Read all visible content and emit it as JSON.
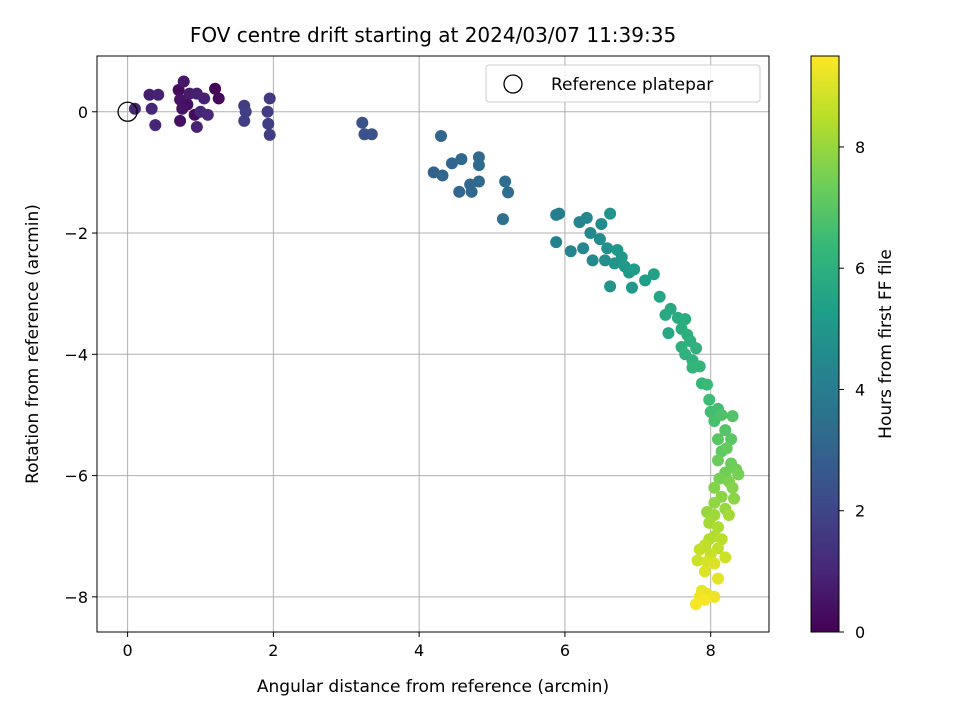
{
  "chart_data": {
    "type": "scatter",
    "title": "FOV centre drift starting at 2024/03/07 11:39:35",
    "xlabel": "Angular distance from reference (arcmin)",
    "ylabel": "Rotation from reference (arcmin)",
    "xlim": [
      -0.42,
      8.8
    ],
    "ylim": [
      -8.58,
      0.92
    ],
    "xticks": [
      0,
      2,
      4,
      6,
      8
    ],
    "yticks": [
      0,
      -2,
      -4,
      -6,
      -8
    ],
    "grid": true,
    "legend": {
      "placement": "top-right",
      "entries": [
        "Reference platepar"
      ]
    },
    "reference_point": {
      "x": 0,
      "y": 0,
      "label": "Reference platepar"
    },
    "colorbar": {
      "label": "Hours from first FF file",
      "min": 0,
      "max": 9.5,
      "ticks": [
        0,
        2,
        4,
        6,
        8
      ],
      "colormap": "viridis",
      "colors": [
        "#440154",
        "#482878",
        "#3e4989",
        "#31688e",
        "#26828e",
        "#1f9e89",
        "#35b779",
        "#6ece58",
        "#b5de2b",
        "#fde725"
      ]
    },
    "points": [
      {
        "x": 0.3,
        "y": 0.28,
        "t": 0.8
      },
      {
        "x": 0.42,
        "y": 0.28,
        "t": 0.9
      },
      {
        "x": 0.33,
        "y": 0.05,
        "t": 1.0
      },
      {
        "x": 0.38,
        "y": -0.22,
        "t": 1.0
      },
      {
        "x": 0.1,
        "y": 0.05,
        "t": 1.0
      },
      {
        "x": 0.7,
        "y": 0.36,
        "t": 0.3
      },
      {
        "x": 0.77,
        "y": 0.5,
        "t": 0.6
      },
      {
        "x": 0.72,
        "y": 0.2,
        "t": 0.5
      },
      {
        "x": 0.82,
        "y": 0.12,
        "t": 0.4
      },
      {
        "x": 0.72,
        "y": -0.15,
        "t": 0.4
      },
      {
        "x": 0.85,
        "y": 0.3,
        "t": 0.7
      },
      {
        "x": 0.95,
        "y": 0.3,
        "t": 0.8
      },
      {
        "x": 0.92,
        "y": -0.05,
        "t": 0.3
      },
      {
        "x": 0.95,
        "y": -0.25,
        "t": 0.9
      },
      {
        "x": 1.05,
        "y": 0.22,
        "t": 0.9
      },
      {
        "x": 1.0,
        "y": 0.0,
        "t": 1.0
      },
      {
        "x": 1.1,
        "y": -0.05,
        "t": 1.1
      },
      {
        "x": 1.2,
        "y": 0.38,
        "t": 0.1
      },
      {
        "x": 1.25,
        "y": 0.22,
        "t": 0.2
      },
      {
        "x": 0.75,
        "y": 0.05,
        "t": 0.5
      },
      {
        "x": 1.6,
        "y": 0.1,
        "t": 1.7
      },
      {
        "x": 1.62,
        "y": 0.0,
        "t": 1.8
      },
      {
        "x": 1.6,
        "y": -0.15,
        "t": 1.8
      },
      {
        "x": 1.95,
        "y": 0.22,
        "t": 1.6
      },
      {
        "x": 1.92,
        "y": 0.0,
        "t": 1.7
      },
      {
        "x": 1.93,
        "y": -0.2,
        "t": 1.8
      },
      {
        "x": 1.95,
        "y": -0.38,
        "t": 1.8
      },
      {
        "x": 3.22,
        "y": -0.18,
        "t": 2.4
      },
      {
        "x": 3.25,
        "y": -0.37,
        "t": 2.4
      },
      {
        "x": 3.35,
        "y": -0.37,
        "t": 2.4
      },
      {
        "x": 4.3,
        "y": -0.4,
        "t": 3.1
      },
      {
        "x": 4.2,
        "y": -1.0,
        "t": 3.0
      },
      {
        "x": 4.32,
        "y": -1.05,
        "t": 3.1
      },
      {
        "x": 4.45,
        "y": -0.85,
        "t": 3.1
      },
      {
        "x": 4.58,
        "y": -0.78,
        "t": 3.2
      },
      {
        "x": 4.55,
        "y": -1.32,
        "t": 3.1
      },
      {
        "x": 4.7,
        "y": -1.2,
        "t": 3.2
      },
      {
        "x": 4.72,
        "y": -1.32,
        "t": 3.2
      },
      {
        "x": 4.82,
        "y": -0.75,
        "t": 3.3
      },
      {
        "x": 4.82,
        "y": -0.88,
        "t": 3.3
      },
      {
        "x": 4.82,
        "y": -1.15,
        "t": 3.3
      },
      {
        "x": 5.18,
        "y": -1.15,
        "t": 3.4
      },
      {
        "x": 5.22,
        "y": -1.33,
        "t": 3.4
      },
      {
        "x": 5.15,
        "y": -1.77,
        "t": 3.5
      },
      {
        "x": 5.88,
        "y": -1.7,
        "t": 4.1
      },
      {
        "x": 5.92,
        "y": -1.68,
        "t": 4.1
      },
      {
        "x": 5.88,
        "y": -2.15,
        "t": 4.2
      },
      {
        "x": 6.08,
        "y": -2.3,
        "t": 4.3
      },
      {
        "x": 6.2,
        "y": -1.82,
        "t": 4.3
      },
      {
        "x": 6.3,
        "y": -1.75,
        "t": 4.4
      },
      {
        "x": 6.35,
        "y": -2.0,
        "t": 4.5
      },
      {
        "x": 6.25,
        "y": -2.25,
        "t": 4.4
      },
      {
        "x": 6.38,
        "y": -2.45,
        "t": 4.5
      },
      {
        "x": 6.48,
        "y": -2.1,
        "t": 4.6
      },
      {
        "x": 6.5,
        "y": -1.85,
        "t": 4.6
      },
      {
        "x": 6.55,
        "y": -2.45,
        "t": 4.7
      },
      {
        "x": 6.58,
        "y": -2.25,
        "t": 4.8
      },
      {
        "x": 6.62,
        "y": -1.68,
        "t": 4.9
      },
      {
        "x": 6.62,
        "y": -2.88,
        "t": 4.9
      },
      {
        "x": 6.68,
        "y": -2.5,
        "t": 4.9
      },
      {
        "x": 6.72,
        "y": -2.28,
        "t": 5.0
      },
      {
        "x": 6.78,
        "y": -2.4,
        "t": 5.0
      },
      {
        "x": 6.82,
        "y": -2.55,
        "t": 5.1
      },
      {
        "x": 6.88,
        "y": -2.65,
        "t": 5.1
      },
      {
        "x": 6.92,
        "y": -2.9,
        "t": 5.1
      },
      {
        "x": 6.95,
        "y": -2.6,
        "t": 5.2
      },
      {
        "x": 7.1,
        "y": -2.78,
        "t": 5.3
      },
      {
        "x": 7.22,
        "y": -2.68,
        "t": 5.4
      },
      {
        "x": 7.3,
        "y": -3.05,
        "t": 5.6
      },
      {
        "x": 7.38,
        "y": -3.35,
        "t": 5.7
      },
      {
        "x": 7.45,
        "y": -3.25,
        "t": 5.7
      },
      {
        "x": 7.42,
        "y": -3.65,
        "t": 5.6
      },
      {
        "x": 7.55,
        "y": -3.4,
        "t": 5.8
      },
      {
        "x": 7.6,
        "y": -3.58,
        "t": 5.9
      },
      {
        "x": 7.65,
        "y": -3.42,
        "t": 5.9
      },
      {
        "x": 7.68,
        "y": -3.68,
        "t": 6.0
      },
      {
        "x": 7.72,
        "y": -3.78,
        "t": 6.0
      },
      {
        "x": 7.6,
        "y": -3.88,
        "t": 6.0
      },
      {
        "x": 7.65,
        "y": -4.0,
        "t": 6.1
      },
      {
        "x": 7.75,
        "y": -4.1,
        "t": 6.1
      },
      {
        "x": 7.8,
        "y": -3.9,
        "t": 6.1
      },
      {
        "x": 7.85,
        "y": -4.2,
        "t": 6.2
      },
      {
        "x": 7.75,
        "y": -4.22,
        "t": 6.2
      },
      {
        "x": 7.88,
        "y": -4.48,
        "t": 6.3
      },
      {
        "x": 7.95,
        "y": -4.5,
        "t": 6.4
      },
      {
        "x": 7.98,
        "y": -4.75,
        "t": 6.5
      },
      {
        "x": 8.0,
        "y": -4.95,
        "t": 6.6
      },
      {
        "x": 8.1,
        "y": -4.9,
        "t": 6.6
      },
      {
        "x": 8.05,
        "y": -5.1,
        "t": 6.7
      },
      {
        "x": 8.15,
        "y": -5.0,
        "t": 6.8
      },
      {
        "x": 8.3,
        "y": -5.02,
        "t": 6.9
      },
      {
        "x": 8.2,
        "y": -5.25,
        "t": 6.9
      },
      {
        "x": 8.1,
        "y": -5.4,
        "t": 7.0
      },
      {
        "x": 8.28,
        "y": -5.4,
        "t": 7.0
      },
      {
        "x": 8.15,
        "y": -5.6,
        "t": 7.1
      },
      {
        "x": 8.22,
        "y": -5.55,
        "t": 7.2
      },
      {
        "x": 8.1,
        "y": -5.75,
        "t": 7.3
      },
      {
        "x": 8.28,
        "y": -5.8,
        "t": 7.3
      },
      {
        "x": 8.35,
        "y": -5.9,
        "t": 7.4
      },
      {
        "x": 8.2,
        "y": -5.95,
        "t": 7.4
      },
      {
        "x": 8.38,
        "y": -5.98,
        "t": 7.5
      },
      {
        "x": 8.12,
        "y": -6.05,
        "t": 7.5
      },
      {
        "x": 8.25,
        "y": -6.1,
        "t": 7.6
      },
      {
        "x": 8.05,
        "y": -6.2,
        "t": 7.7
      },
      {
        "x": 8.3,
        "y": -6.2,
        "t": 7.7
      },
      {
        "x": 8.15,
        "y": -6.35,
        "t": 7.8
      },
      {
        "x": 8.32,
        "y": -6.38,
        "t": 7.8
      },
      {
        "x": 8.05,
        "y": -6.45,
        "t": 7.9
      },
      {
        "x": 8.2,
        "y": -6.55,
        "t": 8.0
      },
      {
        "x": 7.95,
        "y": -6.6,
        "t": 8.0
      },
      {
        "x": 8.05,
        "y": -6.65,
        "t": 8.1
      },
      {
        "x": 8.25,
        "y": -6.65,
        "t": 8.2
      },
      {
        "x": 7.98,
        "y": -6.78,
        "t": 8.2
      },
      {
        "x": 8.1,
        "y": -6.85,
        "t": 8.3
      },
      {
        "x": 8.05,
        "y": -7.0,
        "t": 8.4
      },
      {
        "x": 7.98,
        "y": -7.05,
        "t": 8.4
      },
      {
        "x": 8.15,
        "y": -7.05,
        "t": 8.5
      },
      {
        "x": 7.92,
        "y": -7.15,
        "t": 8.6
      },
      {
        "x": 8.1,
        "y": -7.2,
        "t": 8.6
      },
      {
        "x": 7.85,
        "y": -7.22,
        "t": 8.7
      },
      {
        "x": 8.0,
        "y": -7.3,
        "t": 8.7
      },
      {
        "x": 8.2,
        "y": -7.35,
        "t": 8.8
      },
      {
        "x": 7.82,
        "y": -7.4,
        "t": 8.8
      },
      {
        "x": 7.95,
        "y": -7.42,
        "t": 8.9
      },
      {
        "x": 8.05,
        "y": -7.45,
        "t": 9.0
      },
      {
        "x": 7.92,
        "y": -7.58,
        "t": 9.0
      },
      {
        "x": 8.1,
        "y": -7.7,
        "t": 9.1
      },
      {
        "x": 7.88,
        "y": -7.9,
        "t": 9.2
      },
      {
        "x": 7.95,
        "y": -7.95,
        "t": 9.2
      },
      {
        "x": 8.05,
        "y": -8.0,
        "t": 9.3
      },
      {
        "x": 7.85,
        "y": -8.0,
        "t": 9.3
      },
      {
        "x": 7.92,
        "y": -8.05,
        "t": 9.4
      },
      {
        "x": 7.8,
        "y": -8.12,
        "t": 9.4
      }
    ]
  }
}
